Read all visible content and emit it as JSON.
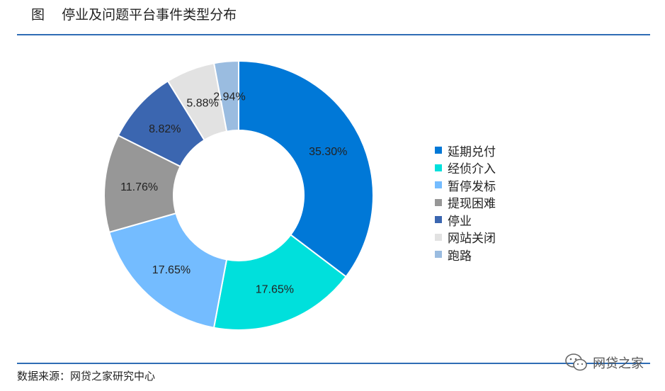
{
  "figure": {
    "title": "图    停业及问题平台事件类型分布",
    "source": "数据来源：网贷之家研究中心",
    "watermark": "网贷之家",
    "watermark_icon": "wechat-icon"
  },
  "chart_data": {
    "type": "pie",
    "donut": true,
    "title": "图    停业及问题平台事件类型分布",
    "legend_position": "right",
    "categories": [
      "延期兑付",
      "经侦介入",
      "暂停发标",
      "提现困难",
      "停业",
      "网站关闭",
      "跑路"
    ],
    "values": [
      35.3,
      17.65,
      17.65,
      11.76,
      8.82,
      5.88,
      2.94
    ],
    "labels": [
      "35.30%",
      "17.65%",
      "17.65%",
      "11.76%",
      "8.82%",
      "5.88%",
      "2.94%"
    ],
    "colors": [
      "#0078d7",
      "#00e0dc",
      "#74bcff",
      "#979797",
      "#3b66b0",
      "#e2e2e2",
      "#9abce0"
    ]
  }
}
